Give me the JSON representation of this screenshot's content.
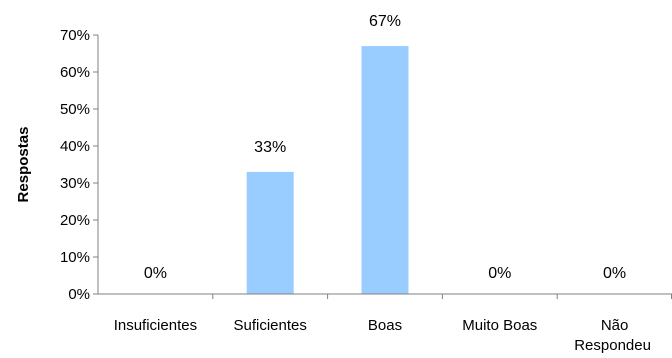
{
  "chart_data": {
    "type": "bar",
    "ylabel": "Respostas",
    "xlabel": "",
    "categories": [
      "Insuficientes",
      "Suficientes",
      "Boas",
      "Muito Boas",
      "Não Respondeu"
    ],
    "values": [
      0,
      33,
      67,
      0,
      0
    ],
    "data_labels": [
      "0%",
      "33%",
      "67%",
      "0%",
      "0%"
    ],
    "ylim": [
      0,
      70
    ],
    "yticks": [
      0,
      10,
      20,
      30,
      40,
      50,
      60,
      70
    ],
    "ytick_labels": [
      "0%",
      "10%",
      "20%",
      "30%",
      "40%",
      "50%",
      "60%",
      "70%"
    ],
    "grid": false,
    "legend": "none",
    "bar_color": "#99CCFF"
  }
}
